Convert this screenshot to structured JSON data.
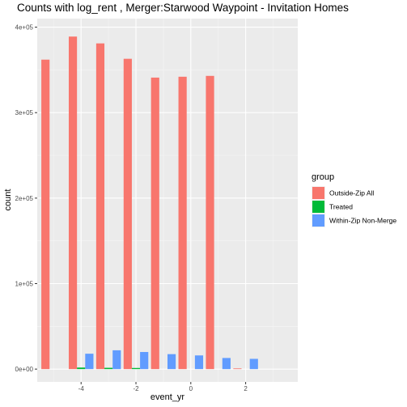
{
  "chart_data": {
    "type": "bar",
    "title": "Counts with log_rent , Merger:Starwood Waypoint - Invitation Homes",
    "xlabel": "event_yr",
    "ylabel": "count",
    "xlim": [
      -5.6,
      3.9
    ],
    "ylim": [
      -15000,
      410000
    ],
    "x_ticks": [
      -4,
      -2,
      0,
      2
    ],
    "x_tick_labels": [
      "-4",
      "-2",
      "0",
      "2"
    ],
    "y_ticks": [
      0,
      100000,
      200000,
      300000,
      400000
    ],
    "y_tick_labels": [
      "0e+00",
      "1e+05",
      "2e+05",
      "3e+05",
      "4e+05"
    ],
    "grid": true,
    "legend": {
      "title": "group",
      "position": "right"
    },
    "series": [
      {
        "name": "Outside-Zip All",
        "color": "#F8766D",
        "points": [
          {
            "x": -5,
            "y": 362000
          },
          {
            "x": -4,
            "y": 389000
          },
          {
            "x": -3,
            "y": 381000
          },
          {
            "x": -2,
            "y": 363000
          },
          {
            "x": -1,
            "y": 341000
          },
          {
            "x": 0,
            "y": 342000
          },
          {
            "x": 1,
            "y": 343000
          },
          {
            "x": 2,
            "y": 800
          }
        ]
      },
      {
        "name": "Treated",
        "color": "#00BA38",
        "points": [
          {
            "x": -4,
            "y": 1800
          },
          {
            "x": -3,
            "y": 1500
          },
          {
            "x": -2,
            "y": 1300
          }
        ]
      },
      {
        "name": "Within-Zip Non-Merge",
        "color": "#619CFF",
        "points": [
          {
            "x": -4,
            "y": 18000
          },
          {
            "x": -3,
            "y": 22000
          },
          {
            "x": -2,
            "y": 20000
          },
          {
            "x": -1,
            "y": 17500
          },
          {
            "x": 0,
            "y": 16000
          },
          {
            "x": 1,
            "y": 13000
          },
          {
            "x": 2,
            "y": 12000
          }
        ]
      }
    ]
  }
}
